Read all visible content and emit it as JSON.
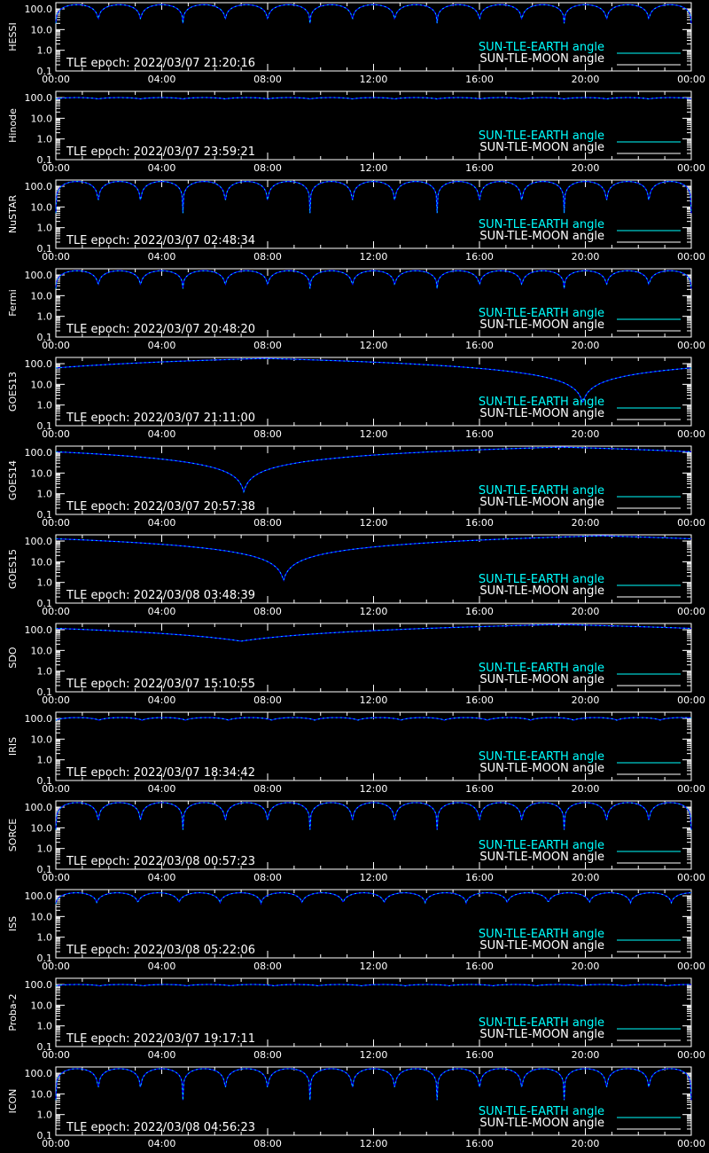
{
  "colors": {
    "background": "#000000",
    "axis": "#ffffff",
    "earth_curve": "#00ffff",
    "earth_curve_shadow": "#0000ff",
    "moon_curve": "#ffffff"
  },
  "chart_data": [
    {
      "type": "line",
      "ylabel": "HESSI",
      "epoch": "TLE epoch: 2022/03/07 21:20:16",
      "x": [
        "00:00",
        "04:00",
        "08:00",
        "12:00",
        "16:00",
        "20:00",
        "00:00"
      ],
      "y_ticks": [
        "100.0",
        "10.0",
        "1.0",
        "0.1"
      ],
      "ylim": [
        0.1,
        200
      ],
      "yscale": "log",
      "legend": [
        "SUN-TLE-EARTH angle",
        "SUN-TLE-MOON angle"
      ],
      "earth_pattern": {
        "shape": "orbital",
        "period_hours": 1.6,
        "max_deg": 160,
        "min_deg": 20
      }
    },
    {
      "type": "line",
      "ylabel": "Hinode",
      "epoch": "TLE epoch: 2022/03/07 23:59:21",
      "x": [
        "00:00",
        "04:00",
        "08:00",
        "12:00",
        "16:00",
        "20:00",
        "00:00"
      ],
      "y_ticks": [
        "100.0",
        "10.0",
        "1.0",
        "0.1"
      ],
      "ylim": [
        0.1,
        200
      ],
      "yscale": "log",
      "legend": [
        "SUN-TLE-EARTH angle",
        "SUN-TLE-MOON angle"
      ],
      "earth_pattern": {
        "shape": "orbital",
        "period_hours": 1.6,
        "max_deg": 100,
        "min_deg": 85
      }
    },
    {
      "type": "line",
      "ylabel": "NuSTAR",
      "epoch": "TLE epoch: 2022/03/07 02:48:34",
      "x": [
        "00:00",
        "04:00",
        "08:00",
        "12:00",
        "16:00",
        "20:00",
        "00:00"
      ],
      "y_ticks": [
        "100.0",
        "10.0",
        "1.0",
        "0.1"
      ],
      "ylim": [
        0.1,
        200
      ],
      "yscale": "log",
      "legend": [
        "SUN-TLE-EARTH angle",
        "SUN-TLE-MOON angle"
      ],
      "earth_pattern": {
        "shape": "orbital",
        "period_hours": 1.6,
        "max_deg": 170,
        "min_deg": 5
      }
    },
    {
      "type": "line",
      "ylabel": "Fermi",
      "epoch": "TLE epoch: 2022/03/07 20:48:20",
      "x": [
        "00:00",
        "04:00",
        "08:00",
        "12:00",
        "16:00",
        "20:00",
        "00:00"
      ],
      "y_ticks": [
        "100.0",
        "10.0",
        "1.0",
        "0.1"
      ],
      "ylim": [
        0.1,
        200
      ],
      "yscale": "log",
      "legend": [
        "SUN-TLE-EARTH angle",
        "SUN-TLE-MOON angle"
      ],
      "earth_pattern": {
        "shape": "orbital",
        "period_hours": 1.6,
        "max_deg": 160,
        "min_deg": 22
      }
    },
    {
      "type": "line",
      "ylabel": "GOES13",
      "epoch": "TLE epoch: 2022/03/07 21:11:00",
      "x": [
        "00:00",
        "04:00",
        "08:00",
        "12:00",
        "16:00",
        "20:00",
        "00:00"
      ],
      "y_ticks": [
        "100.0",
        "10.0",
        "1.0",
        "0.1"
      ],
      "ylim": [
        0.1,
        200
      ],
      "yscale": "log",
      "legend": [
        "SUN-TLE-EARTH angle",
        "SUN-TLE-MOON angle"
      ],
      "earth_pattern": {
        "shape": "geo",
        "min_hour": 19.9,
        "min_deg": 1.2
      }
    },
    {
      "type": "line",
      "ylabel": "GOES14",
      "epoch": "TLE epoch: 2022/03/07 20:57:38",
      "x": [
        "00:00",
        "04:00",
        "08:00",
        "12:00",
        "16:00",
        "20:00",
        "00:00"
      ],
      "y_ticks": [
        "100.0",
        "10.0",
        "1.0",
        "0.1"
      ],
      "ylim": [
        0.1,
        200
      ],
      "yscale": "log",
      "legend": [
        "SUN-TLE-EARTH angle",
        "SUN-TLE-MOON angle"
      ],
      "earth_pattern": {
        "shape": "geo",
        "min_hour": 7.1,
        "min_deg": 1.2
      }
    },
    {
      "type": "line",
      "ylabel": "GOES15",
      "epoch": "TLE epoch: 2022/03/08 03:48:39",
      "x": [
        "00:00",
        "04:00",
        "08:00",
        "12:00",
        "16:00",
        "20:00",
        "00:00"
      ],
      "y_ticks": [
        "100.0",
        "10.0",
        "1.0",
        "0.1"
      ],
      "ylim": [
        0.1,
        200
      ],
      "yscale": "log",
      "legend": [
        "SUN-TLE-EARTH angle",
        "SUN-TLE-MOON angle"
      ],
      "earth_pattern": {
        "shape": "geo",
        "min_hour": 8.6,
        "min_deg": 1.2
      }
    },
    {
      "type": "line",
      "ylabel": "SDO",
      "epoch": "TLE epoch: 2022/03/07 15:10:55",
      "x": [
        "00:00",
        "04:00",
        "08:00",
        "12:00",
        "16:00",
        "20:00",
        "00:00"
      ],
      "y_ticks": [
        "100.0",
        "10.0",
        "1.0",
        "0.1"
      ],
      "ylim": [
        0.1,
        200
      ],
      "yscale": "log",
      "legend": [
        "SUN-TLE-EARTH angle",
        "SUN-TLE-MOON angle"
      ],
      "earth_pattern": {
        "shape": "geo",
        "min_hour": 7.0,
        "min_deg": 28
      }
    },
    {
      "type": "line",
      "ylabel": "IRIS",
      "epoch": "TLE epoch: 2022/03/07 18:34:42",
      "x": [
        "00:00",
        "04:00",
        "08:00",
        "12:00",
        "16:00",
        "20:00",
        "00:00"
      ],
      "y_ticks": [
        "100.0",
        "10.0",
        "1.0",
        "0.1"
      ],
      "ylim": [
        0.1,
        200
      ],
      "yscale": "log",
      "legend": [
        "SUN-TLE-EARTH angle",
        "SUN-TLE-MOON angle"
      ],
      "earth_pattern": {
        "shape": "orbital",
        "period_hours": 1.63,
        "max_deg": 110,
        "min_deg": 80
      }
    },
    {
      "type": "line",
      "ylabel": "SORCE",
      "epoch": "TLE epoch: 2022/03/08 00:57:23",
      "x": [
        "00:00",
        "04:00",
        "08:00",
        "12:00",
        "16:00",
        "20:00",
        "00:00"
      ],
      "y_ticks": [
        "100.0",
        "10.0",
        "1.0",
        "0.1"
      ],
      "ylim": [
        0.1,
        200
      ],
      "yscale": "log",
      "legend": [
        "SUN-TLE-EARTH angle",
        "SUN-TLE-MOON angle"
      ],
      "earth_pattern": {
        "shape": "orbital",
        "period_hours": 1.6,
        "max_deg": 165,
        "min_deg": 8
      }
    },
    {
      "type": "line",
      "ylabel": "ISS",
      "epoch": "TLE epoch: 2022/03/08 05:22:06",
      "x": [
        "00:00",
        "04:00",
        "08:00",
        "12:00",
        "16:00",
        "20:00",
        "00:00"
      ],
      "y_ticks": [
        "100.0",
        "10.0",
        "1.0",
        "0.1"
      ],
      "ylim": [
        0.1,
        200
      ],
      "yscale": "log",
      "legend": [
        "SUN-TLE-EARTH angle",
        "SUN-TLE-MOON angle"
      ],
      "earth_pattern": {
        "shape": "orbital",
        "period_hours": 1.55,
        "max_deg": 140,
        "min_deg": 40
      }
    },
    {
      "type": "line",
      "ylabel": "Proba-2",
      "epoch": "TLE epoch: 2022/03/07 19:17:11",
      "x": [
        "00:00",
        "04:00",
        "08:00",
        "12:00",
        "16:00",
        "20:00",
        "00:00"
      ],
      "y_ticks": [
        "100.0",
        "10.0",
        "1.0",
        "0.1"
      ],
      "ylim": [
        0.1,
        200
      ],
      "yscale": "log",
      "legend": [
        "SUN-TLE-EARTH angle",
        "SUN-TLE-MOON angle"
      ],
      "earth_pattern": {
        "shape": "orbital",
        "period_hours": 1.65,
        "max_deg": 100,
        "min_deg": 85
      }
    },
    {
      "type": "line",
      "ylabel": "ICON",
      "epoch": "TLE epoch: 2022/03/08 04:56:23",
      "x": [
        "00:00",
        "04:00",
        "08:00",
        "12:00",
        "16:00",
        "20:00",
        "00:00"
      ],
      "y_ticks": [
        "100.0",
        "10.0",
        "1.0",
        "0.1"
      ],
      "ylim": [
        0.1,
        200
      ],
      "yscale": "log",
      "legend": [
        "SUN-TLE-EARTH angle",
        "SUN-TLE-MOON angle"
      ],
      "earth_pattern": {
        "shape": "orbital",
        "period_hours": 1.6,
        "max_deg": 165,
        "min_deg": 5
      }
    }
  ]
}
